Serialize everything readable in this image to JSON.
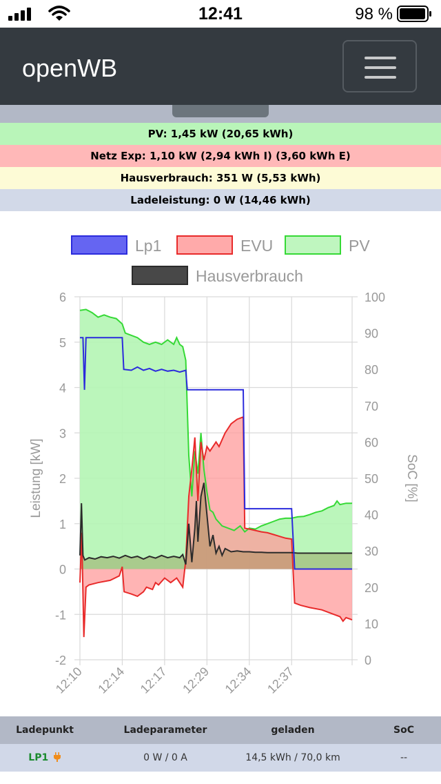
{
  "status_bar": {
    "time": "12:41",
    "battery": "98 %"
  },
  "navbar": {
    "brand": "openWB"
  },
  "info_bars": [
    {
      "text": "PV: 1,45 kW (20,65 kWh)",
      "color": "#b9f5b9"
    },
    {
      "text": "Netz Exp: 1,10 kW (2,94 kWh I) (3,60 kWh E)",
      "color": "#ffb8b8"
    },
    {
      "text": "Hausverbrauch: 351 W (5,53 kWh)",
      "color": "#fdfbd6"
    },
    {
      "text": "Ladeleistung: 0 W (14,46 kWh)",
      "color": "#d2d9e8"
    }
  ],
  "chart_data": {
    "type": "line",
    "legend_position": "top",
    "grid": true,
    "ylabel": "Leistung [kW]",
    "y2label": "SoC [%]",
    "ylim": [
      -2,
      6
    ],
    "y2lim": [
      0,
      100
    ],
    "y_ticks": [
      "-2",
      "-1",
      "0",
      "1",
      "2",
      "3",
      "4",
      "5",
      "6"
    ],
    "y2_ticks": [
      "0",
      "10",
      "20",
      "30",
      "40",
      "50",
      "60",
      "70",
      "80",
      "90",
      "100"
    ],
    "x_ticks": [
      "12:10",
      "12:14",
      "12:17",
      "12:29",
      "12:34",
      "12:37"
    ],
    "x_tick_positions": [
      0,
      14,
      28,
      42,
      56,
      70
    ],
    "x_range": [
      0,
      90
    ],
    "series": [
      {
        "name": "Lp1",
        "color": "#2b2bdc",
        "fill": "#4a4af0",
        "filled": false,
        "points": [
          [
            0,
            5.1
          ],
          [
            1,
            5.1
          ],
          [
            1.5,
            3.95
          ],
          [
            2,
            5.1
          ],
          [
            14,
            5.1
          ],
          [
            14.5,
            4.4
          ],
          [
            17,
            4.38
          ],
          [
            19,
            4.45
          ],
          [
            21,
            4.38
          ],
          [
            23,
            4.42
          ],
          [
            25,
            4.36
          ],
          [
            27,
            4.4
          ],
          [
            29,
            4.36
          ],
          [
            31,
            4.38
          ],
          [
            33,
            4.34
          ],
          [
            35,
            4.38
          ],
          [
            35.5,
            3.95
          ],
          [
            54,
            3.95
          ],
          [
            54.5,
            1.33
          ],
          [
            70,
            1.33
          ],
          [
            71,
            0
          ],
          [
            90,
            0
          ]
        ]
      },
      {
        "name": "EVU",
        "color": "#e82a2a",
        "fill": "#ff9b9b",
        "filled": true,
        "points": [
          [
            0,
            -0.3
          ],
          [
            0.6,
            0.8
          ],
          [
            1.3,
            -1.5
          ],
          [
            2,
            -0.4
          ],
          [
            3,
            -0.35
          ],
          [
            6,
            -0.3
          ],
          [
            10,
            -0.25
          ],
          [
            13,
            -0.15
          ],
          [
            14,
            0.05
          ],
          [
            14.6,
            -0.5
          ],
          [
            17,
            -0.55
          ],
          [
            19,
            -0.6
          ],
          [
            21,
            -0.5
          ],
          [
            22,
            -0.4
          ],
          [
            24,
            -0.45
          ],
          [
            25,
            -0.3
          ],
          [
            26,
            -0.35
          ],
          [
            28,
            -0.2
          ],
          [
            30,
            -0.3
          ],
          [
            32,
            -0.2
          ],
          [
            34,
            -0.4
          ],
          [
            35,
            0.2
          ],
          [
            36,
            1.6
          ],
          [
            37,
            2.2
          ],
          [
            38,
            2.9
          ],
          [
            39,
            1.5
          ],
          [
            40,
            2.8
          ],
          [
            41,
            2.4
          ],
          [
            42,
            2.7
          ],
          [
            43,
            2.6
          ],
          [
            45,
            2.8
          ],
          [
            46,
            2.7
          ],
          [
            48,
            3.0
          ],
          [
            50,
            3.2
          ],
          [
            52,
            3.3
          ],
          [
            54,
            3.35
          ],
          [
            54.5,
            0.9
          ],
          [
            56,
            0.88
          ],
          [
            58,
            0.85
          ],
          [
            60,
            0.82
          ],
          [
            62,
            0.8
          ],
          [
            64,
            0.76
          ],
          [
            66,
            0.72
          ],
          [
            68,
            0.68
          ],
          [
            70,
            0.66
          ],
          [
            71,
            -0.75
          ],
          [
            73,
            -0.8
          ],
          [
            76,
            -0.85
          ],
          [
            80,
            -0.9
          ],
          [
            84,
            -1.0
          ],
          [
            86,
            -1.05
          ],
          [
            87,
            -1.15
          ],
          [
            88,
            -1.07
          ],
          [
            90,
            -1.12
          ]
        ]
      },
      {
        "name": "PV",
        "color": "#35d935",
        "fill": "#b4f5b4",
        "filled": true,
        "points": [
          [
            0,
            5.7
          ],
          [
            2,
            5.72
          ],
          [
            4,
            5.65
          ],
          [
            6,
            5.55
          ],
          [
            8,
            5.6
          ],
          [
            10,
            5.55
          ],
          [
            12,
            5.52
          ],
          [
            14,
            5.4
          ],
          [
            15,
            5.2
          ],
          [
            17,
            5.15
          ],
          [
            19,
            5.1
          ],
          [
            21,
            5.0
          ],
          [
            23,
            4.95
          ],
          [
            25,
            5.0
          ],
          [
            27,
            4.95
          ],
          [
            29,
            5.05
          ],
          [
            31,
            4.95
          ],
          [
            32,
            5.1
          ],
          [
            33,
            4.95
          ],
          [
            34,
            4.9
          ],
          [
            35,
            4.6
          ],
          [
            36,
            2.5
          ],
          [
            37,
            1.6
          ],
          [
            38,
            2.6
          ],
          [
            39,
            2.1
          ],
          [
            40,
            3.0
          ],
          [
            41,
            2.2
          ],
          [
            42,
            1.7
          ],
          [
            43,
            1.3
          ],
          [
            44,
            1.25
          ],
          [
            45,
            1.1
          ],
          [
            47,
            0.95
          ],
          [
            49,
            0.9
          ],
          [
            51,
            0.85
          ],
          [
            53,
            0.95
          ],
          [
            54.5,
            0.82
          ],
          [
            56,
            0.9
          ],
          [
            58,
            0.88
          ],
          [
            60,
            0.95
          ],
          [
            62,
            1.0
          ],
          [
            64,
            1.05
          ],
          [
            66,
            1.1
          ],
          [
            68,
            1.12
          ],
          [
            70,
            1.12
          ],
          [
            72,
            1.15
          ],
          [
            74,
            1.16
          ],
          [
            76,
            1.2
          ],
          [
            78,
            1.25
          ],
          [
            80,
            1.28
          ],
          [
            82,
            1.35
          ],
          [
            84,
            1.4
          ],
          [
            85,
            1.5
          ],
          [
            86,
            1.42
          ],
          [
            88,
            1.45
          ],
          [
            90,
            1.45
          ]
        ]
      },
      {
        "name": "Hausverbrauch",
        "color": "#2b2b2b",
        "fill": "#484848",
        "filled": false,
        "points": [
          [
            0,
            0.3
          ],
          [
            0.5,
            1.45
          ],
          [
            1,
            0.3
          ],
          [
            1.6,
            0.2
          ],
          [
            3,
            0.25
          ],
          [
            5,
            0.22
          ],
          [
            7,
            0.27
          ],
          [
            9,
            0.25
          ],
          [
            11,
            0.28
          ],
          [
            13,
            0.24
          ],
          [
            15,
            0.3
          ],
          [
            17,
            0.25
          ],
          [
            19,
            0.28
          ],
          [
            21,
            0.22
          ],
          [
            23,
            0.28
          ],
          [
            25,
            0.24
          ],
          [
            27,
            0.3
          ],
          [
            29,
            0.25
          ],
          [
            31,
            0.28
          ],
          [
            33,
            0.25
          ],
          [
            34,
            0.32
          ],
          [
            35,
            0.1
          ],
          [
            36,
            1.0
          ],
          [
            37,
            0.15
          ],
          [
            38,
            0.9
          ],
          [
            38.5,
            1.5
          ],
          [
            39,
            0.6
          ],
          [
            40,
            1.6
          ],
          [
            41,
            1.9
          ],
          [
            42,
            1.2
          ],
          [
            43,
            0.5
          ],
          [
            44,
            0.75
          ],
          [
            45,
            0.35
          ],
          [
            46,
            0.5
          ],
          [
            47,
            0.3
          ],
          [
            48,
            0.45
          ],
          [
            50,
            0.38
          ],
          [
            52,
            0.4
          ],
          [
            54,
            0.38
          ],
          [
            56,
            0.38
          ],
          [
            58,
            0.37
          ],
          [
            60,
            0.37
          ],
          [
            62,
            0.36
          ],
          [
            64,
            0.36
          ],
          [
            66,
            0.36
          ],
          [
            68,
            0.36
          ],
          [
            70,
            0.36
          ],
          [
            72,
            0.35
          ],
          [
            76,
            0.35
          ],
          [
            80,
            0.35
          ],
          [
            84,
            0.35
          ],
          [
            88,
            0.35
          ],
          [
            90,
            0.35
          ]
        ]
      }
    ]
  },
  "table": {
    "headers": [
      "Ladepunkt",
      "Ladeparameter",
      "geladen",
      "SoC"
    ],
    "rows": [
      {
        "lp": "LP1",
        "icon": "plug-icon",
        "params": "0 W / 0 A",
        "charged": "14,5 kWh / 70,0 km",
        "soc": "--"
      }
    ]
  }
}
